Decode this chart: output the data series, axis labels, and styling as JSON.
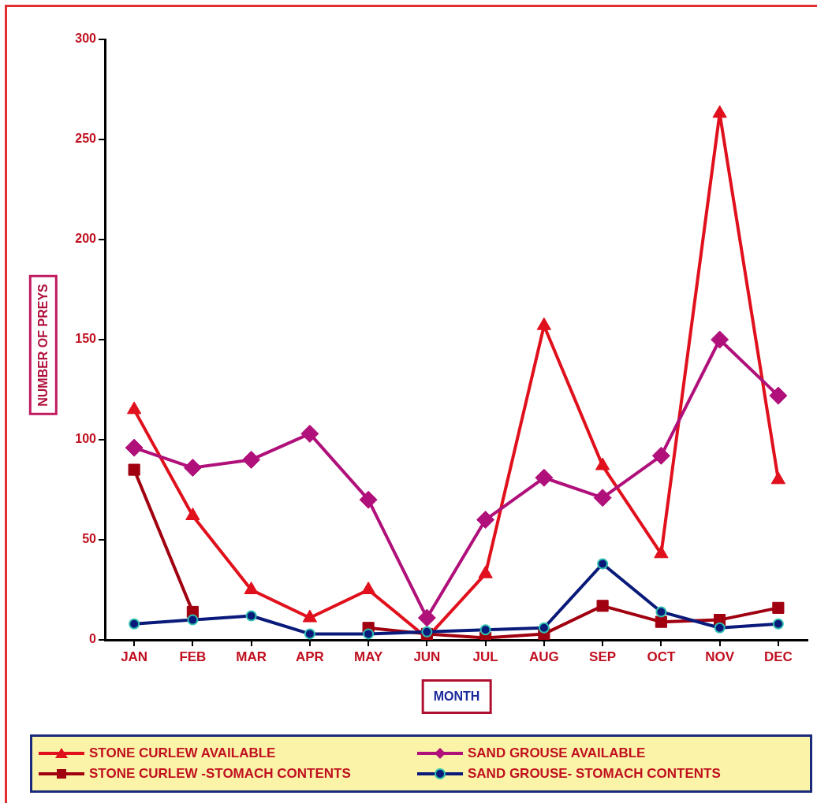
{
  "chart_data": {
    "type": "line",
    "xlabel": "MONTH",
    "ylabel": "NUMBER OF PREYS",
    "categories": [
      "JAN",
      "FEB",
      "MAR",
      "APR",
      "MAY",
      "JUN",
      "JUL",
      "AUG",
      "SEP",
      "OCT",
      "NOV",
      "DEC"
    ],
    "series": [
      {
        "name": "STONE CURLEW AVAILABLE",
        "color": "#e0101c",
        "marker": "triangle",
        "values": [
          115,
          62,
          25,
          11,
          25,
          1,
          33,
          157,
          87,
          43,
          263,
          80
        ]
      },
      {
        "name": "SAND GROUSE AVAILABLE",
        "color": "#b0107a",
        "marker": "diamond",
        "values": [
          96,
          86,
          90,
          103,
          70,
          11,
          60,
          81,
          71,
          92,
          150,
          122
        ]
      },
      {
        "name": "STONE CURLEW -STOMACH CONTENTS",
        "color": "#a00010",
        "marker": "square",
        "values": [
          85,
          14,
          null,
          null,
          6,
          3,
          1,
          3,
          17,
          9,
          10,
          16
        ]
      },
      {
        "name": "SAND GROUSE- STOMACH CONTENTS",
        "color": "#0a1a7a",
        "marker": "circle",
        "values": [
          8,
          10,
          12,
          3,
          3,
          4,
          5,
          6,
          38,
          14,
          6,
          8
        ]
      }
    ],
    "ylim": [
      0,
      300
    ],
    "yticks": [
      0,
      50,
      100,
      150,
      200,
      250,
      300
    ],
    "grid": false,
    "legend": "bottom",
    "line_style": "solid"
  }
}
